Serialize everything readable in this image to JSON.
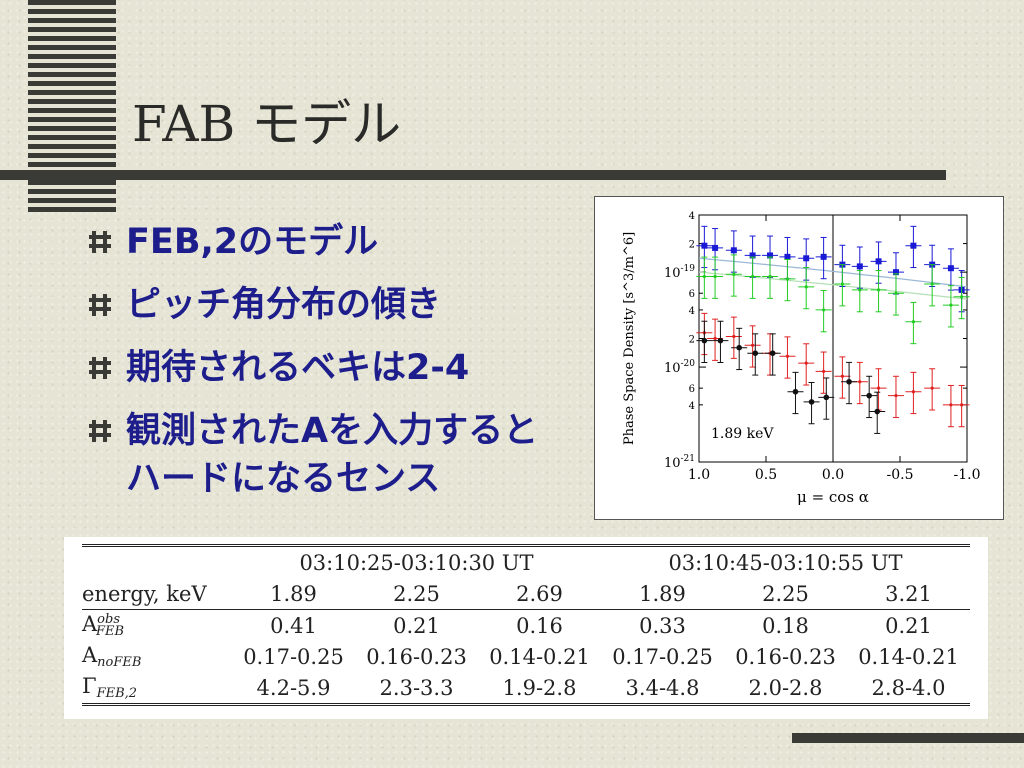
{
  "title": "FAB モデル",
  "bullets": [
    "FEB,2のモデル",
    "ピッチ角分布の傾き",
    "期待されるベキは2-4",
    "観測されたAを入力すると\nハードになるセンス"
  ],
  "bullet_icon": "square-hash-icon",
  "colors": {
    "background": "#e6e5d5",
    "title": "#2a2a28",
    "bullet_text": "#1d1d8c",
    "rule": "#3a3a36"
  },
  "chart_data": {
    "type": "scatter",
    "xlabel": "μ = cos α",
    "ylabel": "Phase Space Density [s^3/m^6]",
    "x_ticks": [
      "1.0",
      "0.5",
      "0.0",
      "-0.5",
      "-1.0"
    ],
    "y_ticks": [
      "10^-19",
      "10^-20",
      "10^-21"
    ],
    "y_minor_labels": [
      "4",
      "2",
      "6",
      "4",
      "2",
      "6",
      "4"
    ],
    "xlim": [
      1.0,
      -1.0
    ],
    "ylim": [
      1e-21,
      4e-19
    ],
    "yscale": "log",
    "annotation": "1.89 keV",
    "series": [
      {
        "color": "#1a1ad6",
        "x": [
          0.96,
          0.88,
          0.74,
          0.6,
          0.47,
          0.34,
          0.2,
          0.07,
          -0.07,
          -0.2,
          -0.34,
          -0.47,
          -0.6,
          -0.74,
          -0.88,
          -0.96
        ],
        "y": [
          1.9e-19,
          1.8e-19,
          1.7e-19,
          1.5e-19,
          1.5e-19,
          1.45e-19,
          1.4e-19,
          1.45e-19,
          1.2e-19,
          1.15e-19,
          1.3e-19,
          1e-19,
          1.9e-19,
          1.2e-19,
          1.1e-19,
          6.5e-20
        ]
      },
      {
        "color": "#22cc22",
        "x": [
          0.96,
          0.88,
          0.74,
          0.6,
          0.47,
          0.34,
          0.2,
          0.07,
          -0.07,
          -0.2,
          -0.34,
          -0.47,
          -0.6,
          -0.74,
          -0.88,
          -0.96
        ],
        "y": [
          9e-20,
          9e-20,
          9.5e-20,
          9e-20,
          9e-20,
          8.5e-20,
          7e-20,
          4e-20,
          7.5e-20,
          6.5e-20,
          6.5e-20,
          6e-20,
          3e-20,
          7.5e-20,
          4.5e-20,
          5.5e-20
        ]
      },
      {
        "color": "#e02020",
        "x": [
          0.96,
          0.88,
          0.74,
          0.6,
          0.47,
          0.34,
          0.2,
          0.07,
          -0.07,
          -0.2,
          -0.34,
          -0.47,
          -0.6,
          -0.74,
          -0.88,
          -0.96
        ],
        "y": [
          2.3e-20,
          2e-20,
          2.1e-20,
          1.7e-20,
          1.4e-20,
          1.3e-20,
          1.1e-20,
          9e-21,
          8e-21,
          7e-21,
          6e-21,
          5e-21,
          5.5e-21,
          6e-21,
          4e-21,
          4e-21
        ]
      },
      {
        "color": "#111111",
        "x": [
          0.96,
          0.84,
          0.7,
          0.58,
          0.45,
          0.28,
          0.16,
          0.05,
          -0.12,
          -0.27,
          -0.33
        ],
        "y": [
          1.9e-20,
          1.9e-20,
          1.6e-20,
          1.4e-20,
          1.4e-20,
          5.5e-21,
          4.3e-21,
          4.8e-21,
          7e-21,
          5e-21,
          3.4e-21
        ]
      }
    ]
  },
  "table": {
    "groups": [
      "03:10:25-03:10:30 UT",
      "03:10:45-03:10:55 UT"
    ],
    "rows": [
      {
        "label": "energy, keV",
        "values": [
          "1.89",
          "2.25",
          "2.69",
          "1.89",
          "2.25",
          "3.21"
        ]
      },
      {
        "label_main": "A",
        "label_sup": "obs",
        "label_sub": "FEB",
        "values": [
          "0.41",
          "0.21",
          "0.16",
          "0.33",
          "0.18",
          "0.21"
        ]
      },
      {
        "label_main": "A",
        "label_sub": "noFEB",
        "values": [
          "0.17-0.25",
          "0.16-0.23",
          "0.14-0.21",
          "0.17-0.25",
          "0.16-0.23",
          "0.14-0.21"
        ]
      },
      {
        "label_main": "Γ",
        "label_sub": "FEB,2",
        "values": [
          "4.2-5.9",
          "2.3-3.3",
          "1.9-2.8",
          "3.4-4.8",
          "2.0-2.8",
          "2.8-4.0"
        ]
      }
    ]
  }
}
